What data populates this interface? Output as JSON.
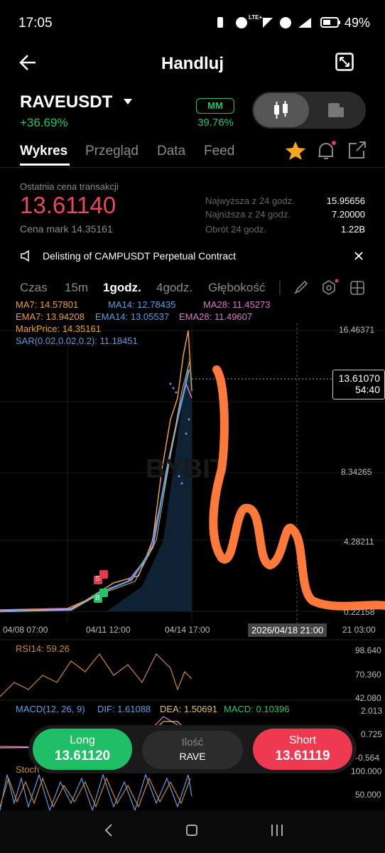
{
  "status_bar": {
    "time": "17:05",
    "network": "LTE+",
    "battery": "49%"
  },
  "header": {
    "title": "Handluj"
  },
  "symbol": {
    "name": "RAVEUSDT",
    "change": "+36.69%",
    "badge": "MM",
    "badge_value": "39.76%"
  },
  "tabs": [
    "Wykres",
    "Przegląd",
    "Data",
    "Feed"
  ],
  "price": {
    "label": "Ostatnia cena transakcji",
    "last": "13.61140",
    "mark": "Cena mark 14.35161",
    "stats": [
      {
        "label": "Najwyższa z 24 godz.",
        "value": "15.95656"
      },
      {
        "label": "Najniższa z 24 godz.",
        "value": "7.20000"
      },
      {
        "label": "Obrót 24 godz.",
        "value": "1.22B"
      }
    ]
  },
  "notice": "Delisting of CAMPUSDT Perpetual Contract",
  "intervals": [
    "Czas",
    "15m",
    "1godz.",
    "4godz.",
    "Głębokość"
  ],
  "indicators": [
    "MA7: 14.57801",
    "MA14: 12.78435",
    "MA28: 11.45273",
    "EMA7: 13.94208",
    "EMA14: 13.05537",
    "EMA28: 11.49607",
    "MarkPrice: 14.35161",
    "SAR(0.02,0.02,0.2): 11.18451"
  ],
  "chart": {
    "y_labels": [
      "16.46371",
      "8.34265",
      "4.28211",
      "0.22158"
    ],
    "price_tag": "13.61070",
    "countdown": "54:40",
    "x_labels": [
      "04/08 07:00",
      "04/11 12:00",
      "04/14 17:00",
      "21 03:00"
    ],
    "crosshair_time": "2026/04/18 21:00",
    "markers": [
      "S",
      "B"
    ]
  },
  "rsi": {
    "label": "RSI14: 59.26",
    "axis": [
      "98.640",
      "70.360",
      "42.080"
    ]
  },
  "macd": {
    "label": "MACD(12, 26, 9)",
    "dif": "DIF: 1.61088",
    "dea": "DEA: 1.50691",
    "macd": "MACD: 0.10396",
    "axis": [
      "2.013",
      "0.725",
      "-0.564"
    ]
  },
  "stoch": {
    "label": "Stoch",
    "axis": [
      "100.000",
      "50.000"
    ]
  },
  "actions": {
    "long_label": "Long",
    "long_price": "13.61120",
    "qty_label": "Ilość",
    "qty_unit": "RAVE",
    "short_label": "Short",
    "short_price": "13.61119"
  }
}
